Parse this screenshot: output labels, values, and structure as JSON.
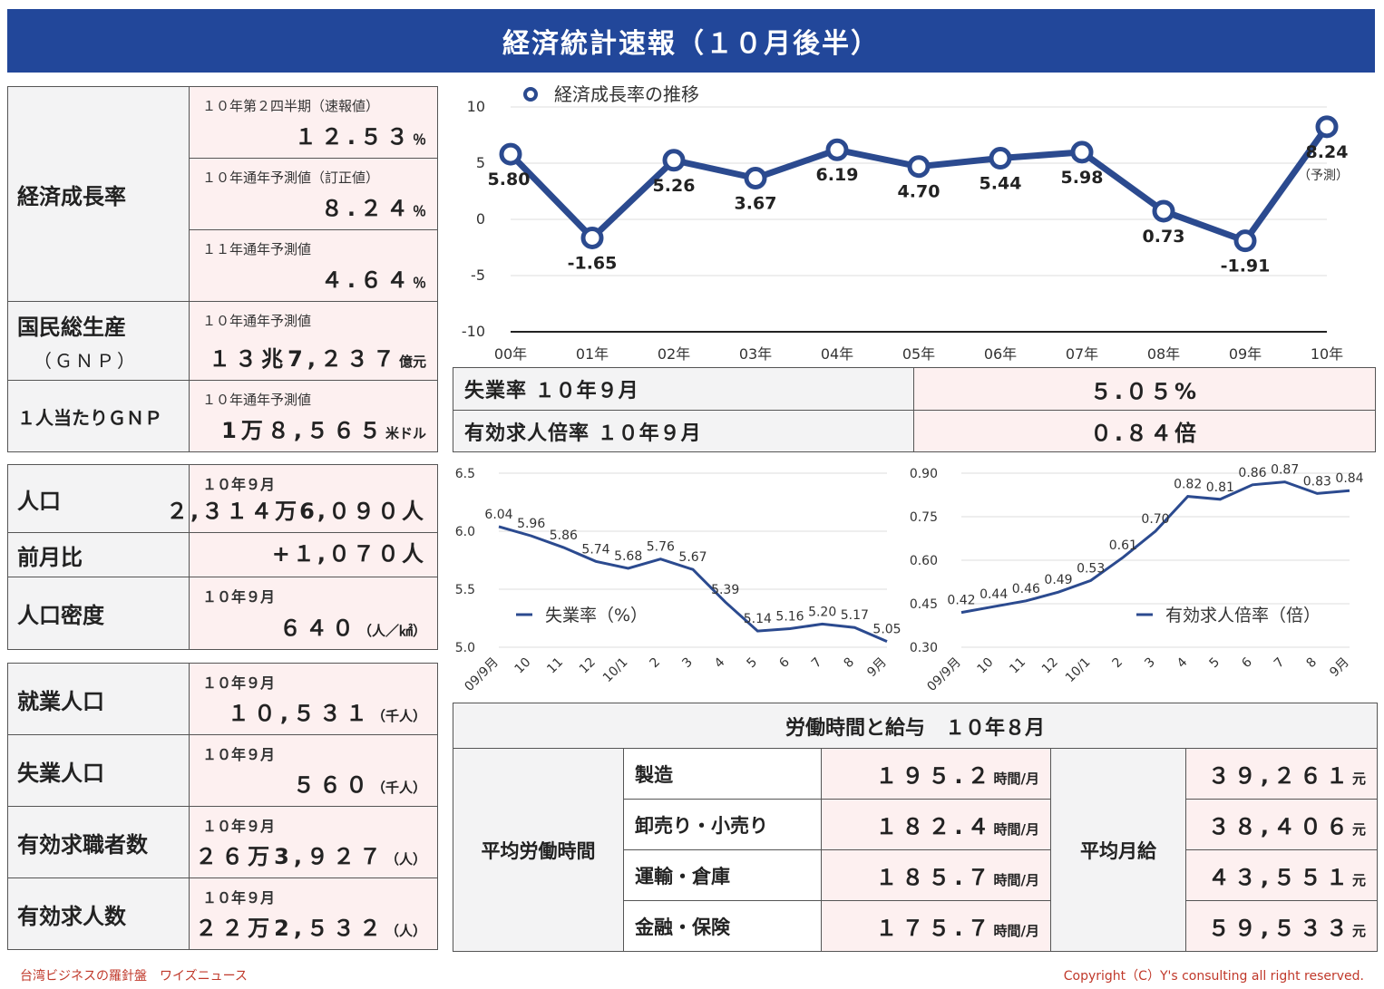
{
  "header": {
    "title": "経済統計速報（１０月後半）"
  },
  "econ": {
    "growth_label": "経済成長率",
    "q2_sub": "１０年第２四半期（速報値）",
    "q2_val": "１２.５３",
    "q2_unit": "％",
    "y10_sub": "１０年通年予測値（訂正値）",
    "y10_val": "８.２４",
    "y10_unit": "％",
    "y11_sub": "１１年通年予測値",
    "y11_val": "４.６４",
    "y11_unit": "％",
    "gnp_label": "国民総生産",
    "gnp_label2": "（ＧＮＰ）",
    "gnp_sub": "１０年通年予測値",
    "gnp_val": "１３兆7,２３７",
    "gnp_unit": "億元",
    "pc_label": "１人当たりＧＮＰ",
    "pc_sub": "１０年通年予測値",
    "pc_val": "1万８,５６５",
    "pc_unit": "米ドル"
  },
  "population": {
    "pop_label": "人口",
    "pop_sub": "１０年９月",
    "pop_val": "２,３１４万6,０９０人",
    "mom_label": "前月比",
    "mom_val": "+１,０７０人",
    "density_label": "人口密度",
    "density_sub": "１０年９月",
    "density_val": "６４０",
    "density_unit": "（人／㎢）"
  },
  "employment": {
    "emp_label": "就業人口",
    "emp_sub": "１０年９月",
    "emp_val": "１０,５３１",
    "emp_unit": "（千人）",
    "unemp_label": "失業人口",
    "unemp_sub": "１０年９月",
    "unemp_val": "５６０",
    "unemp_unit": "（千人）",
    "seekers_label": "有効求職者数",
    "seekers_sub": "１０年９月",
    "seekers_val": "２６万3,９２７",
    "seekers_unit": "（人）",
    "openings_label": "有効求人数",
    "openings_sub": "１０年９月",
    "openings_val": "２２万2,５３２",
    "openings_unit": "（人）"
  },
  "mid": {
    "unemp_rate_label": "失業率 １０年９月",
    "unemp_rate_val": "５.０５%",
    "ratio_label": "有効求人倍率 １０年９月",
    "ratio_val": "０.８４倍"
  },
  "labor": {
    "title": "労働時間と給与　１０年８月",
    "hours_label": "平均労働時間",
    "wage_label": "平均月給",
    "rows": [
      {
        "cat": "製造",
        "hours": "１９５.２",
        "hours_unit": "時間/月",
        "wage": "３９,２６１",
        "wage_unit": "元"
      },
      {
        "cat": "卸売り・小売り",
        "hours": "１８２.４",
        "hours_unit": "時間/月",
        "wage": "３８,４０６",
        "wage_unit": "元"
      },
      {
        "cat": "運輸・倉庫",
        "hours": "１８５.７",
        "hours_unit": "時間/月",
        "wage": "４３,５５１",
        "wage_unit": "元"
      },
      {
        "cat": "金融・保険",
        "hours": "１７５.７",
        "hours_unit": "時間/月",
        "wage": "５９,５３３",
        "wage_unit": "元"
      }
    ]
  },
  "footer": {
    "left": "台湾ビジネスの羅針盤　ワイズニュース",
    "right": "Copyright（C）Y's consulting all right reserved."
  },
  "chart_data": [
    {
      "type": "line",
      "legend": "経済成長率の推移",
      "legend_position": "top-left",
      "x": [
        "00年",
        "01年",
        "02年",
        "03年",
        "04年",
        "05年",
        "06年",
        "07年",
        "08年",
        "09年",
        "10年"
      ],
      "series": [
        {
          "name": "経済成長率の推移",
          "values": [
            5.8,
            -1.65,
            5.26,
            3.67,
            6.19,
            4.7,
            5.44,
            5.98,
            0.73,
            -1.91,
            8.24
          ]
        }
      ],
      "value_labels": [
        "5.80",
        "-1.65",
        "5.26",
        "3.67",
        "6.19",
        "4.70",
        "5.44",
        "5.98",
        "0.73",
        "-1.91",
        "8.24"
      ],
      "annotation": "（予測）",
      "yticks": [
        "10",
        "5",
        "0",
        "-5",
        "-10"
      ],
      "ylim": [
        -10,
        10
      ],
      "grid": true,
      "color": "#2b4a8f"
    },
    {
      "type": "line",
      "legend": "失業率（%）",
      "legend_position": "bottom-left",
      "x": [
        "09/9月",
        "10",
        "11",
        "12",
        "10/1",
        "2",
        "3",
        "4",
        "5",
        "6",
        "7",
        "8",
        "9月"
      ],
      "series": [
        {
          "name": "失業率（%）",
          "values": [
            6.04,
            5.96,
            5.86,
            5.74,
            5.68,
            5.76,
            5.67,
            5.39,
            5.14,
            5.16,
            5.2,
            5.17,
            5.05
          ]
        }
      ],
      "value_labels": [
        "6.04",
        "5.96",
        "5.86",
        "5.74",
        "5.68",
        "5.76",
        "5.67",
        "5.39",
        "5.14",
        "5.16",
        "5.20",
        "5.17",
        "5.05"
      ],
      "yticks": [
        "6.5",
        "6.0",
        "5.5",
        "5.0"
      ],
      "ylim": [
        5.0,
        6.5
      ],
      "grid": true,
      "color": "#2b4a8f"
    },
    {
      "type": "line",
      "legend": "有効求人倍率（倍）",
      "legend_position": "bottom-right",
      "x": [
        "09/9月",
        "10",
        "11",
        "12",
        "10/1",
        "2",
        "3",
        "4",
        "5",
        "6",
        "7",
        "8",
        "9月"
      ],
      "series": [
        {
          "name": "有効求人倍率（倍）",
          "values": [
            0.42,
            0.44,
            0.46,
            0.49,
            0.53,
            0.61,
            0.7,
            0.82,
            0.81,
            0.86,
            0.87,
            0.83,
            0.84
          ]
        }
      ],
      "value_labels": [
        "0.42",
        "0.44",
        "0.46",
        "0.49",
        "0.53",
        "0.61",
        "0.70",
        "0.82",
        "0.81",
        "0.86",
        "0.87",
        "0.83",
        "0.84"
      ],
      "yticks": [
        "0.90",
        "0.75",
        "0.60",
        "0.45",
        "0.30"
      ],
      "ylim": [
        0.3,
        0.9
      ],
      "grid": true,
      "color": "#2b4a8f"
    }
  ]
}
